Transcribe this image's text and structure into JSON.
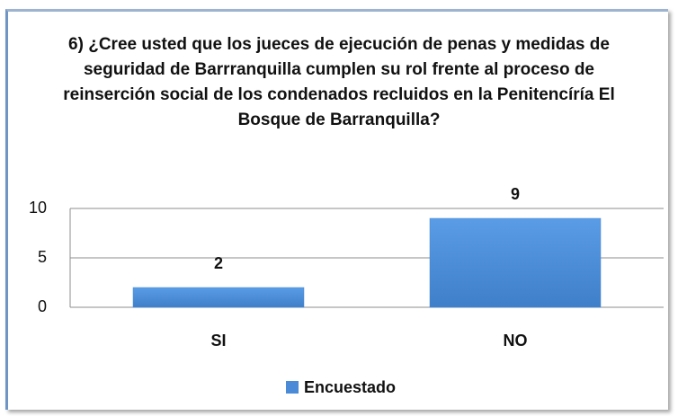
{
  "chart_data": {
    "type": "bar",
    "title": "6) ¿Cree usted que los jueces de ejecución de penas y medidas de seguridad de Barrranquilla cumplen su rol frente al proceso de reinserción social de los condenados recluidos en la Penitencíría El Bosque de Barranquilla?",
    "categories": [
      "SI",
      "NO"
    ],
    "series": [
      {
        "name": "Encuestado",
        "color": "#4a8ad6",
        "values": [
          2,
          9
        ]
      }
    ],
    "ylim": [
      0,
      10
    ],
    "yticks": [
      0,
      5,
      10
    ],
    "grid": true,
    "legend": "bottom"
  }
}
